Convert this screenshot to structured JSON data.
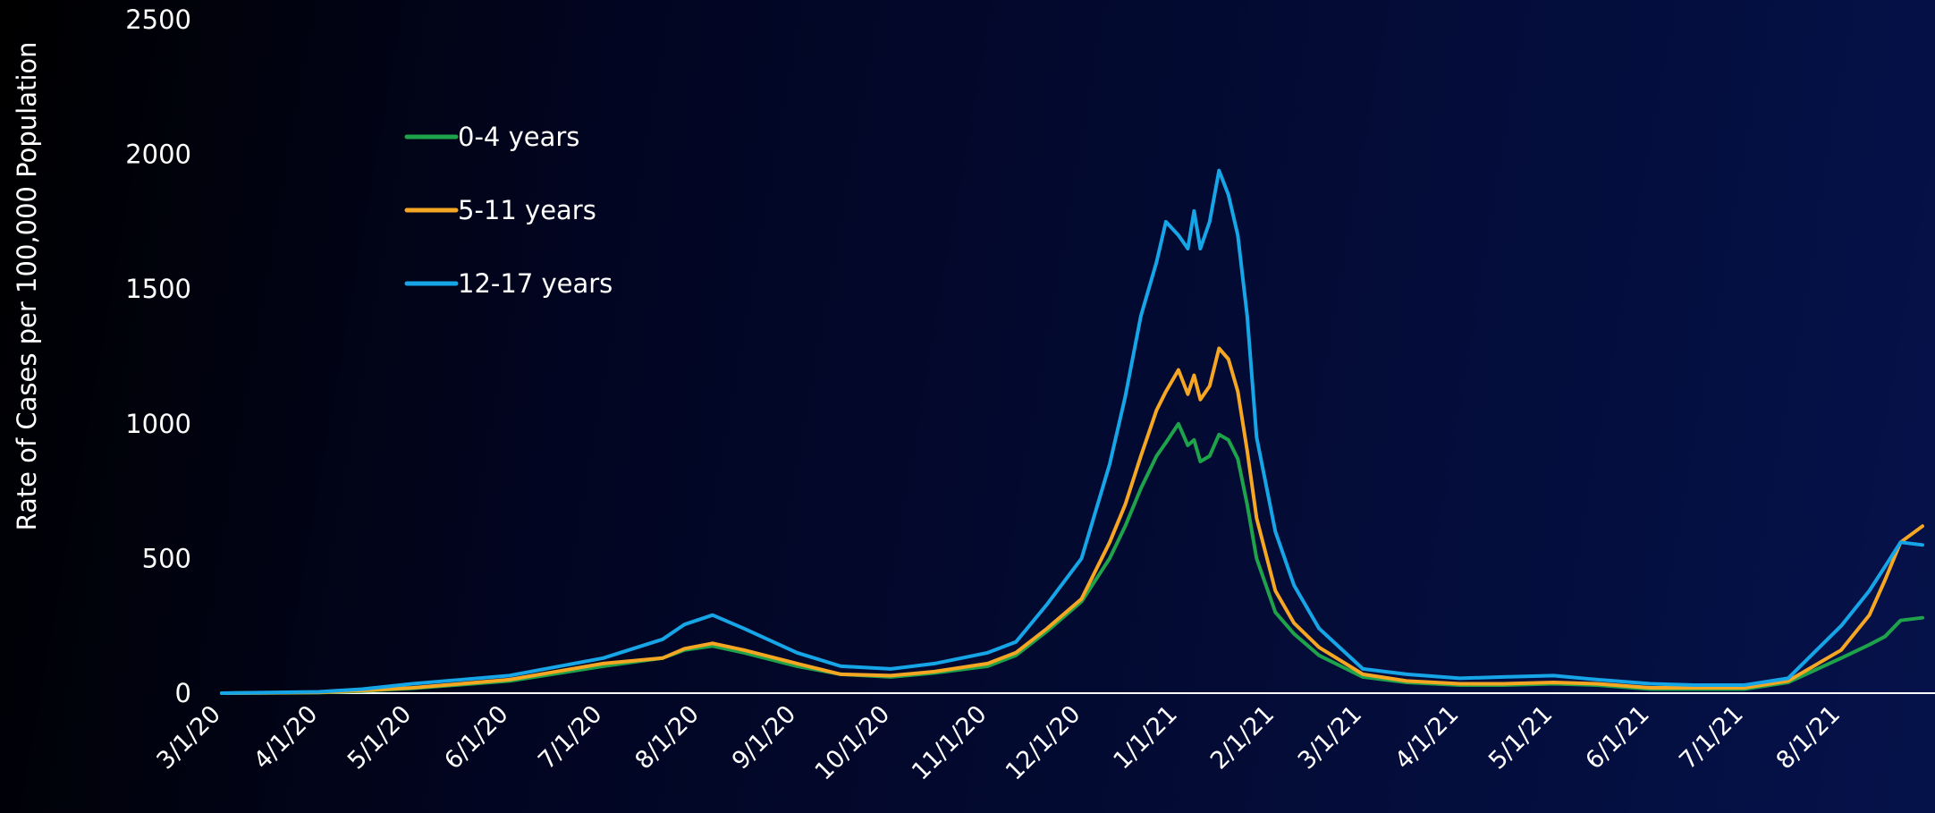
{
  "chart_data": {
    "type": "line",
    "ylabel": "Rate of Cases per 100,000 Population",
    "xlabel": "",
    "ylim": [
      0,
      2500
    ],
    "yticks": [
      0,
      500,
      1000,
      1500,
      2000,
      2500
    ],
    "xticks": [
      "3/1/20",
      "4/1/20",
      "5/1/20",
      "6/1/20",
      "7/1/20",
      "8/1/20",
      "9/1/20",
      "10/1/20",
      "11/1/20",
      "12/1/20",
      "1/1/21",
      "2/1/21",
      "3/1/21",
      "4/1/21",
      "5/1/21",
      "6/1/21",
      "7/1/21",
      "8/1/21"
    ],
    "x": [
      "2020-03-01",
      "2020-04-01",
      "2020-04-15",
      "2020-05-01",
      "2020-06-01",
      "2020-07-01",
      "2020-07-20",
      "2020-07-27",
      "2020-08-05",
      "2020-08-15",
      "2020-09-01",
      "2020-09-15",
      "2020-10-01",
      "2020-10-15",
      "2020-11-01",
      "2020-11-10",
      "2020-11-20",
      "2020-12-01",
      "2020-12-10",
      "2020-12-15",
      "2020-12-20",
      "2020-12-25",
      "2020-12-28",
      "2021-01-01",
      "2021-01-04",
      "2021-01-06",
      "2021-01-08",
      "2021-01-11",
      "2021-01-14",
      "2021-01-17",
      "2021-01-20",
      "2021-01-23",
      "2021-01-26",
      "2021-02-01",
      "2021-02-07",
      "2021-02-15",
      "2021-03-01",
      "2021-03-15",
      "2021-04-01",
      "2021-04-15",
      "2021-05-01",
      "2021-05-15",
      "2021-06-01",
      "2021-06-15",
      "2021-07-01",
      "2021-07-15",
      "2021-08-01",
      "2021-08-10",
      "2021-08-15",
      "2021-08-20",
      "2021-08-27"
    ],
    "series": [
      {
        "name": "0-4 years",
        "color": "#1ea34b",
        "values": [
          0,
          2,
          8,
          18,
          45,
          100,
          130,
          160,
          175,
          150,
          100,
          70,
          60,
          75,
          100,
          140,
          230,
          340,
          500,
          620,
          760,
          880,
          930,
          1000,
          920,
          940,
          860,
          880,
          960,
          940,
          870,
          700,
          500,
          300,
          220,
          140,
          60,
          40,
          30,
          30,
          35,
          30,
          15,
          15,
          15,
          40,
          130,
          180,
          210,
          270,
          280
        ]
      },
      {
        "name": "5-11 years",
        "color": "#f5a623",
        "values": [
          0,
          3,
          10,
          20,
          50,
          110,
          130,
          165,
          185,
          160,
          110,
          70,
          65,
          80,
          110,
          150,
          240,
          350,
          560,
          700,
          880,
          1050,
          1120,
          1200,
          1110,
          1180,
          1090,
          1140,
          1280,
          1240,
          1120,
          900,
          650,
          380,
          260,
          170,
          70,
          45,
          35,
          35,
          40,
          35,
          20,
          20,
          20,
          45,
          160,
          290,
          420,
          560,
          620
        ]
      },
      {
        "name": "12-17 years",
        "color": "#16a6e8",
        "values": [
          0,
          5,
          15,
          35,
          65,
          130,
          200,
          255,
          290,
          240,
          150,
          100,
          90,
          110,
          150,
          190,
          330,
          500,
          850,
          1100,
          1400,
          1600,
          1750,
          1700,
          1650,
          1790,
          1650,
          1750,
          1940,
          1850,
          1700,
          1400,
          950,
          600,
          400,
          240,
          90,
          70,
          55,
          60,
          65,
          50,
          35,
          30,
          30,
          55,
          250,
          380,
          470,
          560,
          550
        ]
      }
    ]
  }
}
